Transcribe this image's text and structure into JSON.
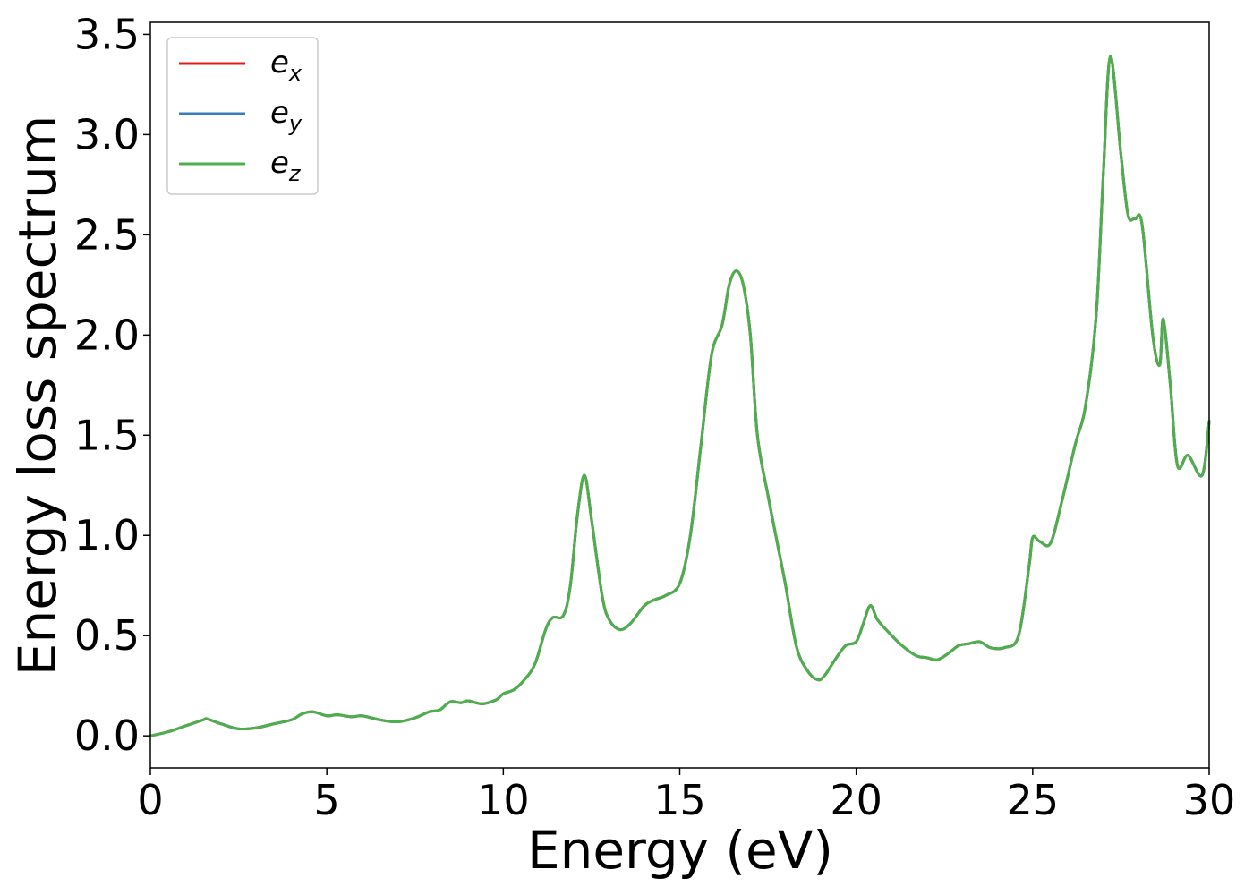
{
  "chart_data": {
    "type": "line",
    "xlabel": "Energy (eV)",
    "ylabel": "Energy loss spectrum",
    "xlim": [
      0,
      30
    ],
    "ylim": [
      -0.16,
      3.56
    ],
    "xticks": [
      0,
      5,
      10,
      15,
      20,
      25,
      30
    ],
    "xtick_labels": [
      "0",
      "5",
      "10",
      "15",
      "20",
      "25",
      "30"
    ],
    "yticks": [
      0.0,
      0.5,
      1.0,
      1.5,
      2.0,
      2.5,
      3.0,
      3.5
    ],
    "ytick_labels": [
      "0.0",
      "0.5",
      "1.0",
      "1.5",
      "2.0",
      "2.5",
      "3.0",
      "3.5"
    ],
    "grid": false,
    "legend_position": "top-left",
    "x": [
      0,
      0.5,
      1.0,
      1.5,
      1.6,
      2.0,
      2.5,
      3.0,
      3.5,
      4.0,
      4.3,
      4.6,
      5.0,
      5.3,
      5.7,
      6.0,
      6.5,
      7.0,
      7.5,
      7.9,
      8.2,
      8.5,
      8.8,
      9.0,
      9.4,
      9.8,
      10.0,
      10.3,
      10.6,
      10.9,
      11.2,
      11.4,
      11.7,
      11.9,
      12.1,
      12.3,
      12.5,
      12.8,
      13.0,
      13.3,
      13.6,
      14.0,
      14.3,
      14.6,
      15.0,
      15.3,
      15.6,
      15.9,
      16.2,
      16.4,
      16.6,
      16.8,
      17.0,
      17.2,
      17.5,
      17.8,
      18.0,
      18.3,
      18.6,
      18.9,
      19.1,
      19.4,
      19.7,
      20.0,
      20.2,
      20.4,
      20.6,
      20.9,
      21.3,
      21.7,
      22.0,
      22.3,
      22.6,
      22.9,
      23.2,
      23.5,
      23.8,
      24.2,
      24.6,
      24.9,
      25.0,
      25.2,
      25.5,
      25.8,
      26.2,
      26.5,
      26.8,
      27.0,
      27.2,
      27.5,
      27.7,
      27.9,
      28.1,
      28.4,
      28.6,
      28.7,
      28.9,
      29.1,
      29.4,
      29.8,
      30.0
    ],
    "series": [
      {
        "name": "e_x",
        "name_base": "e",
        "name_sub": "x",
        "color": "#e41a1c",
        "values": [
          0.0,
          0.02,
          0.05,
          0.08,
          0.085,
          0.06,
          0.035,
          0.04,
          0.06,
          0.08,
          0.11,
          0.12,
          0.1,
          0.105,
          0.095,
          0.1,
          0.08,
          0.07,
          0.09,
          0.12,
          0.13,
          0.17,
          0.165,
          0.175,
          0.16,
          0.18,
          0.21,
          0.23,
          0.28,
          0.36,
          0.53,
          0.59,
          0.6,
          0.75,
          1.1,
          1.3,
          1.08,
          0.7,
          0.58,
          0.53,
          0.56,
          0.65,
          0.68,
          0.7,
          0.76,
          1.0,
          1.45,
          1.9,
          2.05,
          2.25,
          2.32,
          2.25,
          2.0,
          1.5,
          1.2,
          0.93,
          0.75,
          0.45,
          0.33,
          0.28,
          0.3,
          0.38,
          0.45,
          0.47,
          0.56,
          0.65,
          0.58,
          0.52,
          0.45,
          0.4,
          0.39,
          0.38,
          0.41,
          0.45,
          0.46,
          0.47,
          0.44,
          0.44,
          0.5,
          0.85,
          0.99,
          0.97,
          0.96,
          1.15,
          1.45,
          1.65,
          2.1,
          2.8,
          3.39,
          2.9,
          2.6,
          2.58,
          2.55,
          2.0,
          1.85,
          2.08,
          1.75,
          1.35,
          1.4,
          1.3,
          1.57
        ]
      },
      {
        "name": "e_y",
        "name_base": "e",
        "name_sub": "y",
        "color": "#377eb8",
        "values": [
          0.0,
          0.02,
          0.05,
          0.08,
          0.085,
          0.06,
          0.035,
          0.04,
          0.06,
          0.08,
          0.11,
          0.12,
          0.1,
          0.105,
          0.095,
          0.1,
          0.08,
          0.07,
          0.09,
          0.12,
          0.13,
          0.17,
          0.165,
          0.175,
          0.16,
          0.18,
          0.21,
          0.23,
          0.28,
          0.36,
          0.53,
          0.59,
          0.6,
          0.75,
          1.1,
          1.3,
          1.08,
          0.7,
          0.58,
          0.53,
          0.56,
          0.65,
          0.68,
          0.7,
          0.76,
          1.0,
          1.45,
          1.9,
          2.05,
          2.25,
          2.32,
          2.25,
          2.0,
          1.5,
          1.2,
          0.93,
          0.75,
          0.45,
          0.33,
          0.28,
          0.3,
          0.38,
          0.45,
          0.47,
          0.56,
          0.65,
          0.58,
          0.52,
          0.45,
          0.4,
          0.39,
          0.38,
          0.41,
          0.45,
          0.46,
          0.47,
          0.44,
          0.44,
          0.5,
          0.85,
          0.99,
          0.97,
          0.96,
          1.15,
          1.45,
          1.65,
          2.1,
          2.8,
          3.39,
          2.9,
          2.6,
          2.58,
          2.55,
          2.0,
          1.85,
          2.08,
          1.75,
          1.35,
          1.4,
          1.3,
          1.57
        ]
      },
      {
        "name": "e_z",
        "name_base": "e",
        "name_sub": "z",
        "color": "#4daf4a",
        "values": [
          0.0,
          0.02,
          0.05,
          0.08,
          0.085,
          0.06,
          0.035,
          0.04,
          0.06,
          0.08,
          0.11,
          0.12,
          0.1,
          0.105,
          0.095,
          0.1,
          0.08,
          0.07,
          0.09,
          0.12,
          0.13,
          0.17,
          0.165,
          0.175,
          0.16,
          0.18,
          0.21,
          0.23,
          0.28,
          0.36,
          0.53,
          0.59,
          0.6,
          0.75,
          1.1,
          1.3,
          1.08,
          0.7,
          0.58,
          0.53,
          0.56,
          0.65,
          0.68,
          0.7,
          0.76,
          1.0,
          1.45,
          1.9,
          2.05,
          2.25,
          2.32,
          2.25,
          2.0,
          1.5,
          1.2,
          0.93,
          0.75,
          0.45,
          0.33,
          0.28,
          0.3,
          0.38,
          0.45,
          0.47,
          0.56,
          0.65,
          0.58,
          0.52,
          0.45,
          0.4,
          0.39,
          0.38,
          0.41,
          0.45,
          0.46,
          0.47,
          0.44,
          0.44,
          0.5,
          0.85,
          0.99,
          0.97,
          0.96,
          1.15,
          1.45,
          1.65,
          2.1,
          2.8,
          3.39,
          2.9,
          2.6,
          2.58,
          2.55,
          2.0,
          1.85,
          2.08,
          1.75,
          1.35,
          1.4,
          1.3,
          1.57
        ]
      }
    ]
  }
}
